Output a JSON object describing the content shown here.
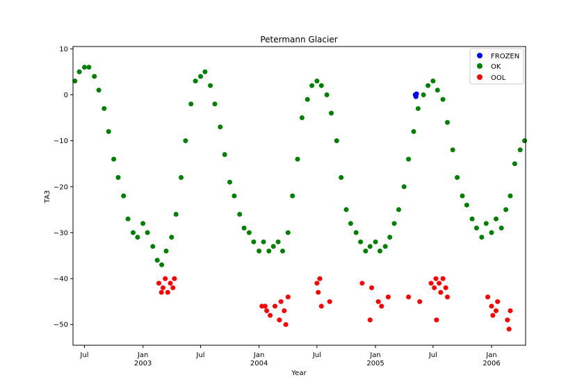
{
  "chart_data": {
    "type": "scatter",
    "title": "Petermann Glacier",
    "xlabel": "Year",
    "ylabel": "TA3",
    "xlim": [
      "2002-05-26",
      "2006-04-18"
    ],
    "ylim": [
      -54.5,
      10.5
    ],
    "y_ticks": [
      10,
      0,
      -10,
      -20,
      -30,
      -40,
      -50
    ],
    "x_ticks": [
      {
        "date": "2002-07-01",
        "label": "Jul",
        "sublabel": ""
      },
      {
        "date": "2003-01-01",
        "label": "Jan",
        "sublabel": "2003"
      },
      {
        "date": "2003-07-01",
        "label": "Jul",
        "sublabel": ""
      },
      {
        "date": "2004-01-01",
        "label": "Jan",
        "sublabel": "2004"
      },
      {
        "date": "2004-07-01",
        "label": "Jul",
        "sublabel": ""
      },
      {
        "date": "2005-01-01",
        "label": "Jan",
        "sublabel": "2005"
      },
      {
        "date": "2005-07-01",
        "label": "Jul",
        "sublabel": ""
      },
      {
        "date": "2006-01-01",
        "label": "Jan",
        "sublabel": "2006"
      }
    ],
    "legend_position": "top-right",
    "grid": false,
    "series": [
      {
        "name": "FROZEN",
        "color": "#0000ff",
        "points": [
          [
            "2005-05-06",
            0.0
          ],
          [
            "2005-05-08",
            -0.4
          ],
          [
            "2005-05-10",
            0.2
          ]
        ]
      },
      {
        "name": "OK",
        "color": "#008000",
        "points": [
          [
            "2002-06-01",
            3
          ],
          [
            "2002-06-15",
            5
          ],
          [
            "2002-07-01",
            6
          ],
          [
            "2002-07-15",
            6
          ],
          [
            "2002-08-01",
            4
          ],
          [
            "2002-08-15",
            1
          ],
          [
            "2002-09-01",
            -3
          ],
          [
            "2002-09-15",
            -8
          ],
          [
            "2002-10-01",
            -14
          ],
          [
            "2002-10-15",
            -18
          ],
          [
            "2002-11-01",
            -22
          ],
          [
            "2002-11-15",
            -27
          ],
          [
            "2002-12-01",
            -30
          ],
          [
            "2002-12-15",
            -31
          ],
          [
            "2003-01-01",
            -28
          ],
          [
            "2003-01-15",
            -30
          ],
          [
            "2003-02-01",
            -33
          ],
          [
            "2003-02-15",
            -36
          ],
          [
            "2003-03-01",
            -37
          ],
          [
            "2003-03-15",
            -34
          ],
          [
            "2003-04-01",
            -31
          ],
          [
            "2003-04-15",
            -26
          ],
          [
            "2003-05-01",
            -18
          ],
          [
            "2003-05-15",
            -10
          ],
          [
            "2003-06-01",
            -2
          ],
          [
            "2003-06-15",
            3
          ],
          [
            "2003-07-01",
            4
          ],
          [
            "2003-07-15",
            5
          ],
          [
            "2003-08-01",
            2
          ],
          [
            "2003-08-15",
            -2
          ],
          [
            "2003-09-01",
            -7
          ],
          [
            "2003-09-15",
            -13
          ],
          [
            "2003-10-01",
            -19
          ],
          [
            "2003-10-15",
            -22
          ],
          [
            "2003-11-01",
            -26
          ],
          [
            "2003-11-15",
            -29
          ],
          [
            "2003-12-01",
            -30
          ],
          [
            "2003-12-15",
            -32
          ],
          [
            "2004-01-01",
            -34
          ],
          [
            "2004-01-15",
            -32
          ],
          [
            "2004-02-01",
            -34
          ],
          [
            "2004-02-15",
            -33
          ],
          [
            "2004-03-01",
            -32
          ],
          [
            "2004-03-15",
            -34
          ],
          [
            "2004-04-01",
            -30
          ],
          [
            "2004-04-15",
            -22
          ],
          [
            "2004-05-01",
            -14
          ],
          [
            "2004-05-15",
            -5
          ],
          [
            "2004-06-01",
            -1
          ],
          [
            "2004-06-15",
            2
          ],
          [
            "2004-07-01",
            3
          ],
          [
            "2004-07-15",
            2
          ],
          [
            "2004-08-01",
            0
          ],
          [
            "2004-08-15",
            -4
          ],
          [
            "2004-09-01",
            -10
          ],
          [
            "2004-09-15",
            -18
          ],
          [
            "2004-10-01",
            -25
          ],
          [
            "2004-10-15",
            -28
          ],
          [
            "2004-11-01",
            -30
          ],
          [
            "2004-11-15",
            -32
          ],
          [
            "2004-12-01",
            -34
          ],
          [
            "2004-12-15",
            -33
          ],
          [
            "2005-01-01",
            -32
          ],
          [
            "2005-01-15",
            -34
          ],
          [
            "2005-02-01",
            -33
          ],
          [
            "2005-02-15",
            -31
          ],
          [
            "2005-03-01",
            -28
          ],
          [
            "2005-03-15",
            -25
          ],
          [
            "2005-04-01",
            -20
          ],
          [
            "2005-04-15",
            -14
          ],
          [
            "2005-05-01",
            -8
          ],
          [
            "2005-05-15",
            -3
          ],
          [
            "2005-06-01",
            0
          ],
          [
            "2005-06-15",
            2
          ],
          [
            "2005-07-01",
            3
          ],
          [
            "2005-07-15",
            1
          ],
          [
            "2005-08-01",
            -1
          ],
          [
            "2005-08-15",
            -6
          ],
          [
            "2005-09-01",
            -12
          ],
          [
            "2005-09-15",
            -18
          ],
          [
            "2005-10-01",
            -22
          ],
          [
            "2005-10-15",
            -24
          ],
          [
            "2005-11-01",
            -27
          ],
          [
            "2005-11-15",
            -29
          ],
          [
            "2005-12-01",
            -31
          ],
          [
            "2005-12-15",
            -28
          ],
          [
            "2006-01-01",
            -30
          ],
          [
            "2006-01-15",
            -27
          ],
          [
            "2006-02-01",
            -29
          ],
          [
            "2006-02-15",
            -25
          ],
          [
            "2006-03-01",
            -22
          ],
          [
            "2006-03-15",
            -15
          ],
          [
            "2006-04-01",
            -12
          ],
          [
            "2006-04-15",
            -10
          ]
        ]
      },
      {
        "name": "OOL",
        "color": "#ff0000",
        "points": [
          [
            "2003-02-20",
            -41
          ],
          [
            "2003-02-28",
            -43
          ],
          [
            "2003-03-05",
            -42
          ],
          [
            "2003-03-12",
            -40
          ],
          [
            "2003-03-20",
            -43
          ],
          [
            "2003-03-28",
            -41
          ],
          [
            "2003-04-05",
            -42
          ],
          [
            "2003-04-10",
            -40
          ],
          [
            "2004-01-10",
            -46
          ],
          [
            "2004-01-20",
            -46
          ],
          [
            "2004-01-25",
            -47
          ],
          [
            "2004-02-05",
            -48
          ],
          [
            "2004-02-20",
            -46
          ],
          [
            "2004-03-05",
            -49
          ],
          [
            "2004-03-10",
            -45
          ],
          [
            "2004-03-20",
            -47
          ],
          [
            "2004-03-25",
            -50
          ],
          [
            "2004-04-01",
            -44
          ],
          [
            "2004-07-01",
            -41
          ],
          [
            "2004-07-05",
            -43
          ],
          [
            "2004-07-10",
            -40
          ],
          [
            "2004-07-15",
            -46
          ],
          [
            "2004-08-10",
            -45
          ],
          [
            "2004-11-20",
            -41
          ],
          [
            "2004-12-15",
            -49
          ],
          [
            "2004-12-20",
            -42
          ],
          [
            "2005-01-10",
            -45
          ],
          [
            "2005-01-20",
            -46
          ],
          [
            "2005-02-10",
            -44
          ],
          [
            "2005-04-15",
            -44
          ],
          [
            "2005-05-20",
            -45
          ],
          [
            "2005-06-25",
            -41
          ],
          [
            "2005-07-05",
            -42
          ],
          [
            "2005-07-10",
            -40
          ],
          [
            "2005-07-20",
            -41
          ],
          [
            "2005-07-25",
            -43
          ],
          [
            "2005-08-01",
            -40
          ],
          [
            "2005-08-10",
            -42
          ],
          [
            "2005-08-15",
            -44
          ],
          [
            "2005-07-12",
            -49
          ],
          [
            "2005-12-20",
            -44
          ],
          [
            "2006-01-01",
            -46
          ],
          [
            "2006-01-05",
            -48
          ],
          [
            "2006-01-15",
            -47
          ],
          [
            "2006-01-20",
            -45
          ],
          [
            "2006-02-20",
            -49
          ],
          [
            "2006-02-25",
            -51
          ],
          [
            "2006-03-01",
            -47
          ]
        ]
      }
    ]
  }
}
